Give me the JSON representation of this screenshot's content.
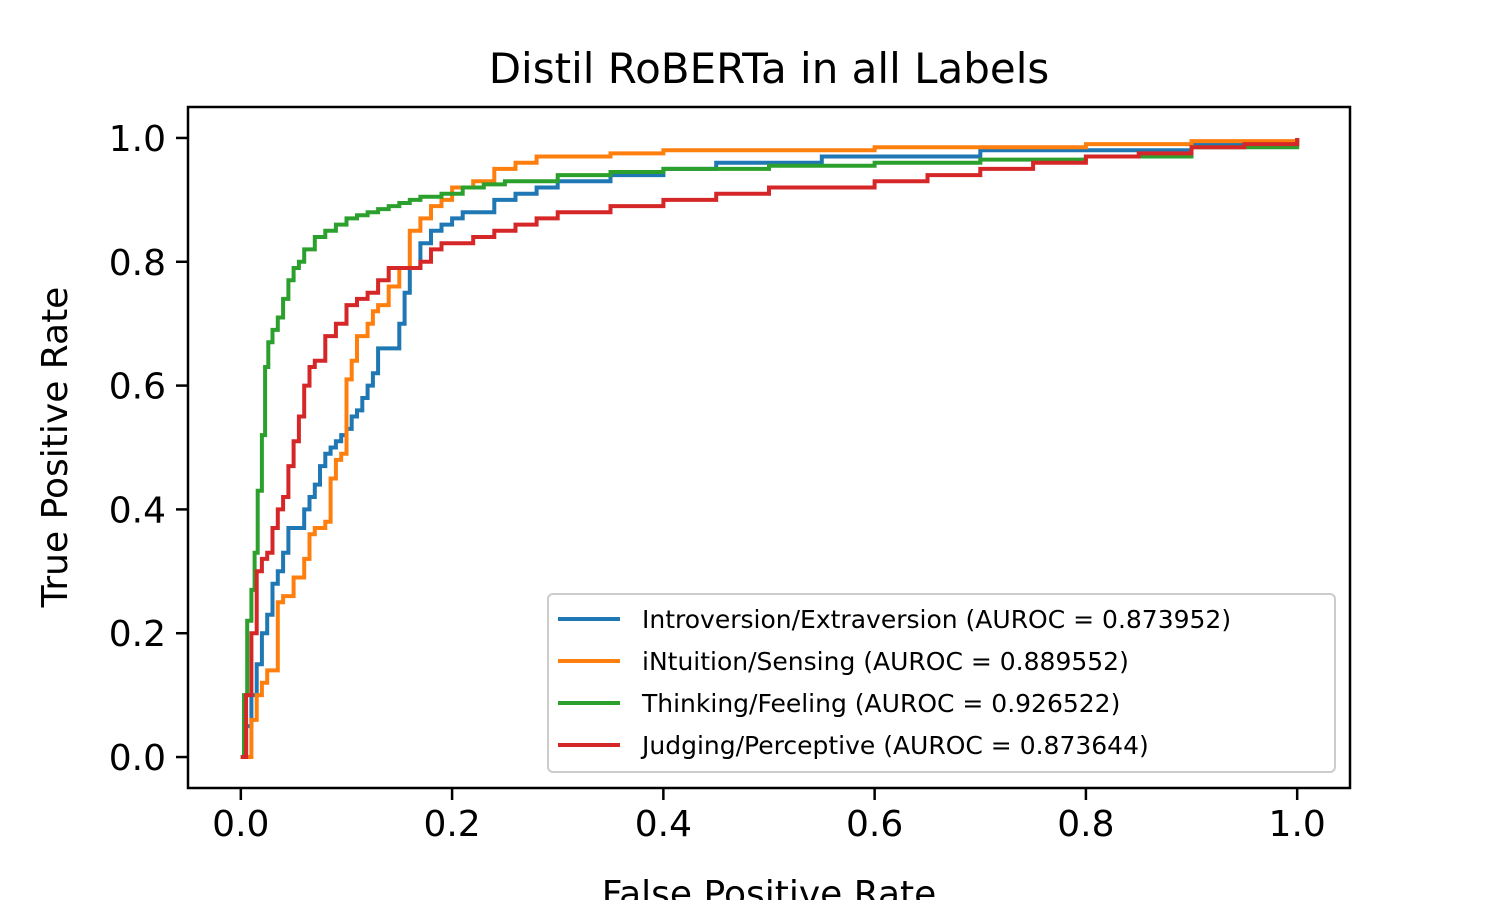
{
  "chart_data": {
    "type": "line",
    "title": "Distil RoBERTa in all Labels",
    "xlabel": "False Positive Rate",
    "ylabel": "True Positive Rate",
    "xlim": [
      -0.05,
      1.05
    ],
    "ylim": [
      -0.05,
      1.05
    ],
    "xticks": [
      "0.0",
      "0.2",
      "0.4",
      "0.6",
      "0.8",
      "1.0"
    ],
    "yticks": [
      "0.0",
      "0.2",
      "0.4",
      "0.6",
      "0.8",
      "1.0"
    ],
    "grid": false,
    "legend_position": "lower-right",
    "series": [
      {
        "name": "Introversion/Extraversion (AUROC = 0.873952)",
        "color": "#1f77b4",
        "x": [
          0,
          0.005,
          0.01,
          0.015,
          0.02,
          0.025,
          0.03,
          0.035,
          0.04,
          0.045,
          0.05,
          0.06,
          0.065,
          0.07,
          0.075,
          0.08,
          0.085,
          0.09,
          0.095,
          0.1,
          0.105,
          0.11,
          0.115,
          0.12,
          0.125,
          0.13,
          0.135,
          0.14,
          0.15,
          0.155,
          0.16,
          0.165,
          0.17,
          0.18,
          0.19,
          0.2,
          0.21,
          0.22,
          0.24,
          0.26,
          0.28,
          0.3,
          0.35,
          0.4,
          0.45,
          0.5,
          0.55,
          0.6,
          0.7,
          0.8,
          0.85,
          0.9,
          0.95,
          1.0
        ],
        "y": [
          0,
          0.05,
          0.1,
          0.15,
          0.2,
          0.23,
          0.28,
          0.3,
          0.33,
          0.37,
          0.37,
          0.4,
          0.42,
          0.44,
          0.47,
          0.49,
          0.5,
          0.51,
          0.52,
          0.53,
          0.55,
          0.56,
          0.58,
          0.6,
          0.62,
          0.66,
          0.66,
          0.66,
          0.7,
          0.75,
          0.79,
          0.79,
          0.83,
          0.85,
          0.86,
          0.87,
          0.88,
          0.88,
          0.9,
          0.91,
          0.92,
          0.93,
          0.94,
          0.95,
          0.96,
          0.96,
          0.97,
          0.97,
          0.98,
          0.98,
          0.98,
          0.99,
          0.99,
          1.0
        ]
      },
      {
        "name": "iNtuition/Sensing (AUROC = 0.889552)",
        "color": "#ff7f0e",
        "x": [
          0,
          0.01,
          0.015,
          0.02,
          0.025,
          0.03,
          0.035,
          0.04,
          0.05,
          0.06,
          0.065,
          0.07,
          0.08,
          0.085,
          0.09,
          0.095,
          0.1,
          0.105,
          0.11,
          0.12,
          0.125,
          0.13,
          0.14,
          0.15,
          0.16,
          0.17,
          0.18,
          0.19,
          0.2,
          0.22,
          0.24,
          0.26,
          0.28,
          0.3,
          0.35,
          0.4,
          0.5,
          0.6,
          0.7,
          0.8,
          0.9,
          1.0
        ],
        "y": [
          0,
          0.06,
          0.1,
          0.12,
          0.14,
          0.14,
          0.25,
          0.26,
          0.29,
          0.32,
          0.36,
          0.37,
          0.38,
          0.45,
          0.48,
          0.49,
          0.61,
          0.64,
          0.68,
          0.7,
          0.72,
          0.73,
          0.76,
          0.79,
          0.85,
          0.87,
          0.89,
          0.9,
          0.92,
          0.93,
          0.95,
          0.96,
          0.97,
          0.97,
          0.975,
          0.98,
          0.98,
          0.985,
          0.985,
          0.99,
          0.995,
          1.0
        ]
      },
      {
        "name": "Thinking/Feeling (AUROC = 0.926522)",
        "color": "#2ca02c",
        "x": [
          0,
          0.003,
          0.006,
          0.01,
          0.013,
          0.016,
          0.02,
          0.023,
          0.026,
          0.03,
          0.035,
          0.04,
          0.045,
          0.05,
          0.055,
          0.06,
          0.07,
          0.08,
          0.09,
          0.1,
          0.11,
          0.12,
          0.13,
          0.14,
          0.15,
          0.16,
          0.17,
          0.19,
          0.21,
          0.23,
          0.25,
          0.3,
          0.35,
          0.4,
          0.5,
          0.6,
          0.7,
          0.8,
          0.9,
          1.0
        ],
        "y": [
          0,
          0.1,
          0.22,
          0.27,
          0.33,
          0.43,
          0.52,
          0.63,
          0.67,
          0.69,
          0.71,
          0.74,
          0.77,
          0.79,
          0.8,
          0.82,
          0.84,
          0.85,
          0.86,
          0.87,
          0.875,
          0.88,
          0.885,
          0.89,
          0.895,
          0.9,
          0.905,
          0.91,
          0.92,
          0.925,
          0.93,
          0.94,
          0.945,
          0.95,
          0.955,
          0.96,
          0.965,
          0.97,
          0.985,
          1.0
        ]
      },
      {
        "name": "Judging/Perceptive (AUROC = 0.873644)",
        "color": "#d62728",
        "x": [
          0,
          0.005,
          0.01,
          0.015,
          0.02,
          0.025,
          0.03,
          0.035,
          0.04,
          0.045,
          0.05,
          0.055,
          0.06,
          0.065,
          0.07,
          0.08,
          0.09,
          0.1,
          0.11,
          0.12,
          0.13,
          0.14,
          0.15,
          0.16,
          0.17,
          0.18,
          0.19,
          0.2,
          0.22,
          0.24,
          0.26,
          0.28,
          0.3,
          0.35,
          0.4,
          0.45,
          0.5,
          0.55,
          0.6,
          0.65,
          0.7,
          0.75,
          0.8,
          0.85,
          0.9,
          0.95,
          1.0
        ],
        "y": [
          0,
          0.1,
          0.2,
          0.3,
          0.32,
          0.33,
          0.37,
          0.4,
          0.42,
          0.47,
          0.51,
          0.55,
          0.6,
          0.63,
          0.64,
          0.68,
          0.7,
          0.73,
          0.74,
          0.75,
          0.77,
          0.79,
          0.79,
          0.79,
          0.8,
          0.82,
          0.83,
          0.83,
          0.84,
          0.85,
          0.86,
          0.87,
          0.88,
          0.89,
          0.9,
          0.91,
          0.92,
          0.92,
          0.93,
          0.94,
          0.95,
          0.96,
          0.97,
          0.975,
          0.985,
          0.99,
          1.0
        ]
      }
    ]
  }
}
